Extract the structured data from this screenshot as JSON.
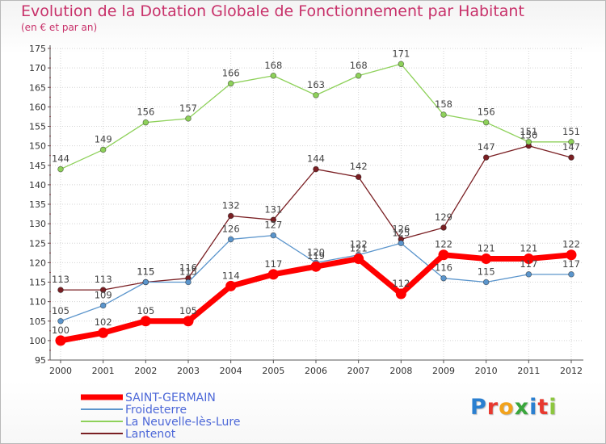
{
  "header": {
    "title": "Evolution de la Dotation Globale de Fonctionnement par Habitant",
    "subtitle": "(en € et par an)"
  },
  "logo": {
    "letters": [
      "P",
      "r",
      "o",
      "x",
      "i",
      "t",
      "i"
    ],
    "colors": [
      "#2a7fd0",
      "#e8392f",
      "#f2a21b",
      "#3aa63c",
      "#2a7fd0",
      "#e8392f",
      "#8cc63e"
    ]
  },
  "chart_data": {
    "type": "line",
    "title": "Evolution de la Dotation Globale de Fonctionnement par Habitant",
    "subtitle": "(en € et par an)",
    "xlabel": "",
    "ylabel": "",
    "ylim": [
      95,
      175
    ],
    "yticks": [
      95,
      100,
      105,
      110,
      115,
      120,
      125,
      130,
      135,
      140,
      145,
      150,
      155,
      160,
      165,
      170,
      175
    ],
    "grid": true,
    "legend": "bottom-left",
    "x": [
      "2000",
      "2001",
      "2002",
      "2003",
      "2004",
      "2005",
      "2006",
      "2007",
      "2008",
      "2009",
      "2010",
      "2011",
      "2012"
    ],
    "series": [
      {
        "name": "Lantenot",
        "color": "#7a1f23",
        "values": [
          113,
          113,
          115,
          116,
          132,
          131,
          144,
          142,
          126,
          129,
          147,
          150,
          147
        ],
        "labels": [
          "113",
          "113",
          "115",
          "116",
          "132",
          "131",
          "144",
          "142",
          "126",
          "129",
          "147",
          "150",
          "147"
        ]
      },
      {
        "name": "La Neuvelle-lès-Lure",
        "color": "#8ed15a",
        "values": [
          144,
          149,
          156,
          157,
          166,
          168,
          163,
          168,
          171,
          158,
          156,
          151,
          151
        ],
        "labels": [
          "144",
          "149",
          "156",
          "157",
          "166",
          "168",
          "163",
          "168",
          "171",
          "158",
          "156",
          "151",
          "151"
        ]
      },
      {
        "name": "Froideterre",
        "color": "#5b95cc",
        "values": [
          105,
          109,
          115,
          115,
          126,
          127,
          120,
          122,
          125,
          116,
          115,
          117,
          117
        ],
        "labels": [
          "105",
          "109",
          "115",
          "115",
          "126",
          "127",
          "120",
          "122",
          "125",
          "116",
          "115",
          "117",
          "117"
        ]
      },
      {
        "name": "SAINT-GERMAIN",
        "color": "#ff0000",
        "values": [
          100,
          102,
          105,
          105,
          114,
          117,
          119,
          121,
          112,
          122,
          121,
          121,
          122
        ],
        "labels": [
          "100",
          "102",
          "105",
          "105",
          "114",
          "117",
          "119",
          "121",
          "112",
          "122",
          "121",
          "121",
          "122"
        ]
      }
    ],
    "legend_entries": [
      {
        "name": "SAINT-GERMAIN",
        "color": "#ff0000"
      },
      {
        "name": "Froideterre",
        "color": "#5b95cc"
      },
      {
        "name": "La Neuvelle-lès-Lure",
        "color": "#8ed15a"
      },
      {
        "name": "Lantenot",
        "color": "#7a1f23"
      }
    ]
  }
}
